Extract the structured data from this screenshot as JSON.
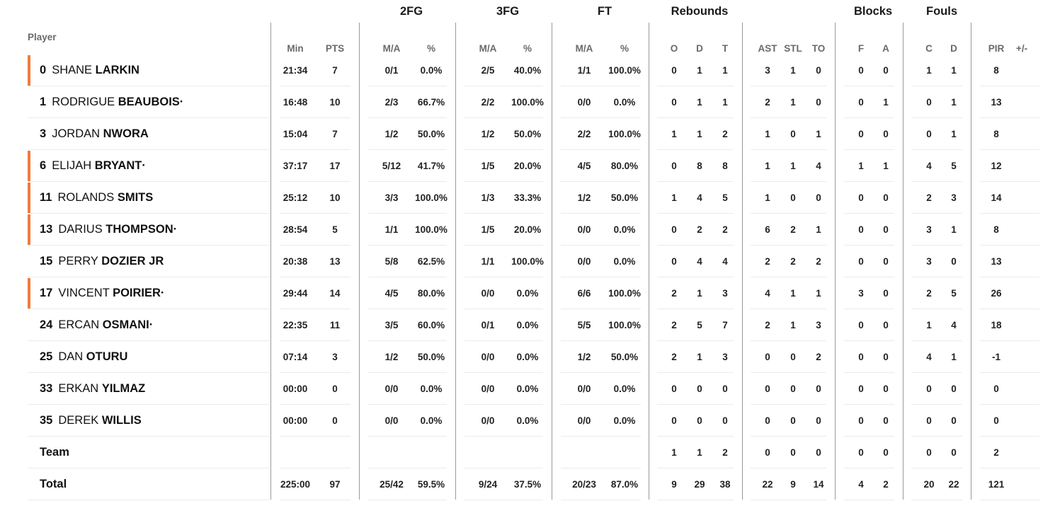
{
  "groups": {
    "fg2": "2FG",
    "fg3": "3FG",
    "ft": "FT",
    "rebounds": "Rebounds",
    "blocks": "Blocks",
    "fouls": "Fouls"
  },
  "columns": {
    "player": "Player",
    "min": "Min",
    "pts": "PTS",
    "fg2_ma": "M/A",
    "fg2_pct": "%",
    "fg3_ma": "M/A",
    "fg3_pct": "%",
    "ft_ma": "M/A",
    "ft_pct": "%",
    "reb_o": "O",
    "reb_d": "D",
    "reb_t": "T",
    "ast": "AST",
    "stl": "STL",
    "to": "TO",
    "blk_f": "F",
    "blk_a": "A",
    "foul_c": "C",
    "foul_d": "D",
    "pir": "PIR",
    "plusminus": "+/-"
  },
  "players": [
    {
      "number": "0",
      "first": "SHANE",
      "last": "LARKIN",
      "starter": true,
      "min": "21:34",
      "pts": "7",
      "fg2_ma": "0/1",
      "fg2_pct": "0.0%",
      "fg3_ma": "2/5",
      "fg3_pct": "40.0%",
      "ft_ma": "1/1",
      "ft_pct": "100.0%",
      "reb_o": "0",
      "reb_d": "1",
      "reb_t": "1",
      "ast": "3",
      "stl": "1",
      "to": "0",
      "blk_f": "0",
      "blk_a": "0",
      "foul_c": "1",
      "foul_d": "1",
      "pir": "8"
    },
    {
      "number": "1",
      "first": "RODRIGUE",
      "last": "BEAUBOIS·",
      "starter": false,
      "min": "16:48",
      "pts": "10",
      "fg2_ma": "2/3",
      "fg2_pct": "66.7%",
      "fg3_ma": "2/2",
      "fg3_pct": "100.0%",
      "ft_ma": "0/0",
      "ft_pct": "0.0%",
      "reb_o": "0",
      "reb_d": "1",
      "reb_t": "1",
      "ast": "2",
      "stl": "1",
      "to": "0",
      "blk_f": "0",
      "blk_a": "1",
      "foul_c": "0",
      "foul_d": "1",
      "pir": "13"
    },
    {
      "number": "3",
      "first": "JORDAN",
      "last": "NWORA",
      "starter": false,
      "min": "15:04",
      "pts": "7",
      "fg2_ma": "1/2",
      "fg2_pct": "50.0%",
      "fg3_ma": "1/2",
      "fg3_pct": "50.0%",
      "ft_ma": "2/2",
      "ft_pct": "100.0%",
      "reb_o": "1",
      "reb_d": "1",
      "reb_t": "2",
      "ast": "1",
      "stl": "0",
      "to": "1",
      "blk_f": "0",
      "blk_a": "0",
      "foul_c": "0",
      "foul_d": "1",
      "pir": "8"
    },
    {
      "number": "6",
      "first": "ELIJAH",
      "last": "BRYANT·",
      "starter": true,
      "min": "37:17",
      "pts": "17",
      "fg2_ma": "5/12",
      "fg2_pct": "41.7%",
      "fg3_ma": "1/5",
      "fg3_pct": "20.0%",
      "ft_ma": "4/5",
      "ft_pct": "80.0%",
      "reb_o": "0",
      "reb_d": "8",
      "reb_t": "8",
      "ast": "1",
      "stl": "1",
      "to": "4",
      "blk_f": "1",
      "blk_a": "1",
      "foul_c": "4",
      "foul_d": "5",
      "pir": "12"
    },
    {
      "number": "11",
      "first": "ROLANDS",
      "last": "SMITS",
      "starter": true,
      "min": "25:12",
      "pts": "10",
      "fg2_ma": "3/3",
      "fg2_pct": "100.0%",
      "fg3_ma": "1/3",
      "fg3_pct": "33.3%",
      "ft_ma": "1/2",
      "ft_pct": "50.0%",
      "reb_o": "1",
      "reb_d": "4",
      "reb_t": "5",
      "ast": "1",
      "stl": "0",
      "to": "0",
      "blk_f": "0",
      "blk_a": "0",
      "foul_c": "2",
      "foul_d": "3",
      "pir": "14"
    },
    {
      "number": "13",
      "first": "DARIUS",
      "last": "THOMPSON·",
      "starter": true,
      "min": "28:54",
      "pts": "5",
      "fg2_ma": "1/1",
      "fg2_pct": "100.0%",
      "fg3_ma": "1/5",
      "fg3_pct": "20.0%",
      "ft_ma": "0/0",
      "ft_pct": "0.0%",
      "reb_o": "0",
      "reb_d": "2",
      "reb_t": "2",
      "ast": "6",
      "stl": "2",
      "to": "1",
      "blk_f": "0",
      "blk_a": "0",
      "foul_c": "3",
      "foul_d": "1",
      "pir": "8"
    },
    {
      "number": "15",
      "first": "PERRY",
      "last": "DOZIER JR",
      "starter": false,
      "min": "20:38",
      "pts": "13",
      "fg2_ma": "5/8",
      "fg2_pct": "62.5%",
      "fg3_ma": "1/1",
      "fg3_pct": "100.0%",
      "ft_ma": "0/0",
      "ft_pct": "0.0%",
      "reb_o": "0",
      "reb_d": "4",
      "reb_t": "4",
      "ast": "2",
      "stl": "2",
      "to": "2",
      "blk_f": "0",
      "blk_a": "0",
      "foul_c": "3",
      "foul_d": "0",
      "pir": "13"
    },
    {
      "number": "17",
      "first": "VINCENT",
      "last": "POIRIER·",
      "starter": true,
      "min": "29:44",
      "pts": "14",
      "fg2_ma": "4/5",
      "fg2_pct": "80.0%",
      "fg3_ma": "0/0",
      "fg3_pct": "0.0%",
      "ft_ma": "6/6",
      "ft_pct": "100.0%",
      "reb_o": "2",
      "reb_d": "1",
      "reb_t": "3",
      "ast": "4",
      "stl": "1",
      "to": "1",
      "blk_f": "3",
      "blk_a": "0",
      "foul_c": "2",
      "foul_d": "5",
      "pir": "26"
    },
    {
      "number": "24",
      "first": "ERCAN",
      "last": "OSMANI·",
      "starter": false,
      "min": "22:35",
      "pts": "11",
      "fg2_ma": "3/5",
      "fg2_pct": "60.0%",
      "fg3_ma": "0/1",
      "fg3_pct": "0.0%",
      "ft_ma": "5/5",
      "ft_pct": "100.0%",
      "reb_o": "2",
      "reb_d": "5",
      "reb_t": "7",
      "ast": "2",
      "stl": "1",
      "to": "3",
      "blk_f": "0",
      "blk_a": "0",
      "foul_c": "1",
      "foul_d": "4",
      "pir": "18"
    },
    {
      "number": "25",
      "first": "DAN",
      "last": "OTURU",
      "starter": false,
      "min": "07:14",
      "pts": "3",
      "fg2_ma": "1/2",
      "fg2_pct": "50.0%",
      "fg3_ma": "0/0",
      "fg3_pct": "0.0%",
      "ft_ma": "1/2",
      "ft_pct": "50.0%",
      "reb_o": "2",
      "reb_d": "1",
      "reb_t": "3",
      "ast": "0",
      "stl": "0",
      "to": "2",
      "blk_f": "0",
      "blk_a": "0",
      "foul_c": "4",
      "foul_d": "1",
      "pir": "-1"
    },
    {
      "number": "33",
      "first": "ERKAN",
      "last": "YILMAZ",
      "starter": false,
      "min": "00:00",
      "pts": "0",
      "fg2_ma": "0/0",
      "fg2_pct": "0.0%",
      "fg3_ma": "0/0",
      "fg3_pct": "0.0%",
      "ft_ma": "0/0",
      "ft_pct": "0.0%",
      "reb_o": "0",
      "reb_d": "0",
      "reb_t": "0",
      "ast": "0",
      "stl": "0",
      "to": "0",
      "blk_f": "0",
      "blk_a": "0",
      "foul_c": "0",
      "foul_d": "0",
      "pir": "0"
    },
    {
      "number": "35",
      "first": "DEREK",
      "last": "WILLIS",
      "starter": false,
      "min": "00:00",
      "pts": "0",
      "fg2_ma": "0/0",
      "fg2_pct": "0.0%",
      "fg3_ma": "0/0",
      "fg3_pct": "0.0%",
      "ft_ma": "0/0",
      "ft_pct": "0.0%",
      "reb_o": "0",
      "reb_d": "0",
      "reb_t": "0",
      "ast": "0",
      "stl": "0",
      "to": "0",
      "blk_f": "0",
      "blk_a": "0",
      "foul_c": "0",
      "foul_d": "0",
      "pir": "0"
    }
  ],
  "team_row": {
    "label": "Team",
    "min": "",
    "pts": "",
    "fg2_ma": "",
    "fg2_pct": "",
    "fg3_ma": "",
    "fg3_pct": "",
    "ft_ma": "",
    "ft_pct": "",
    "reb_o": "1",
    "reb_d": "1",
    "reb_t": "2",
    "ast": "0",
    "stl": "0",
    "to": "0",
    "blk_f": "0",
    "blk_a": "0",
    "foul_c": "0",
    "foul_d": "0",
    "pir": "2"
  },
  "total_row": {
    "label": "Total",
    "min": "225:00",
    "pts": "97",
    "fg2_ma": "25/42",
    "fg2_pct": "59.5%",
    "fg3_ma": "9/24",
    "fg3_pct": "37.5%",
    "ft_ma": "20/23",
    "ft_pct": "87.0%",
    "reb_o": "9",
    "reb_d": "29",
    "reb_t": "38",
    "ast": "22",
    "stl": "9",
    "to": "14",
    "blk_f": "4",
    "blk_a": "2",
    "foul_c": "20",
    "foul_d": "22",
    "pir": "121"
  },
  "colors": {
    "starter_accent": "#f07c3c",
    "divider": "#9a9a9a",
    "row_line": "#ebebeb",
    "header_text": "#6a6a6a"
  }
}
